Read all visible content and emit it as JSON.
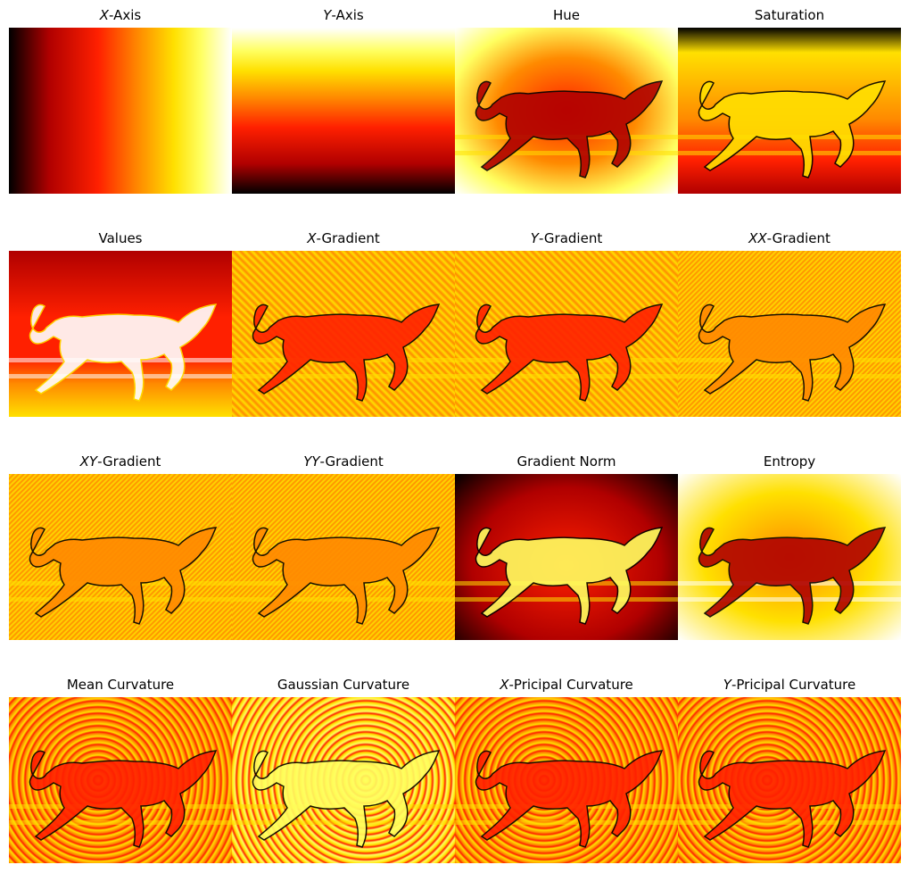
{
  "figure": {
    "colormap": "hot",
    "colors": [
      "#000000",
      "#b00000",
      "#ff2000",
      "#ff8a00",
      "#ffe000",
      "#ffff60",
      "#ffffff"
    ],
    "subject": "galloping-horse",
    "panels": [
      {
        "title_var": "X",
        "title_rest": "-Axis",
        "style": "x-axis"
      },
      {
        "title_var": "Y",
        "title_rest": "-Axis",
        "style": "y-axis"
      },
      {
        "title_var": "",
        "title_rest": "Hue",
        "style": "hue"
      },
      {
        "title_var": "",
        "title_rest": "Saturation",
        "style": "saturation"
      },
      {
        "title_var": "",
        "title_rest": "Values",
        "style": "values"
      },
      {
        "title_var": "X",
        "title_rest": "-Gradient",
        "style": "gradient"
      },
      {
        "title_var": "Y",
        "title_rest": "-Gradient",
        "style": "gradient"
      },
      {
        "title_var": "XX",
        "title_rest": "-Gradient",
        "style": "gradient2"
      },
      {
        "title_var": "XY",
        "title_rest": "-Gradient",
        "style": "gradient2"
      },
      {
        "title_var": "YY",
        "title_rest": "-Gradient",
        "style": "gradient2"
      },
      {
        "title_var": "",
        "title_rest": "Gradient Norm",
        "style": "norm"
      },
      {
        "title_var": "",
        "title_rest": "Entropy",
        "style": "entropy"
      },
      {
        "title_var": "",
        "title_rest": "Mean Curvature",
        "style": "curv"
      },
      {
        "title_var": "",
        "title_rest": "Gaussian Curvature",
        "style": "gauss"
      },
      {
        "title_var": "X",
        "title_rest": "-Pricipal Curvature",
        "style": "curv"
      },
      {
        "title_var": "Y",
        "title_rest": "-Pricipal Curvature",
        "style": "curv"
      }
    ]
  }
}
